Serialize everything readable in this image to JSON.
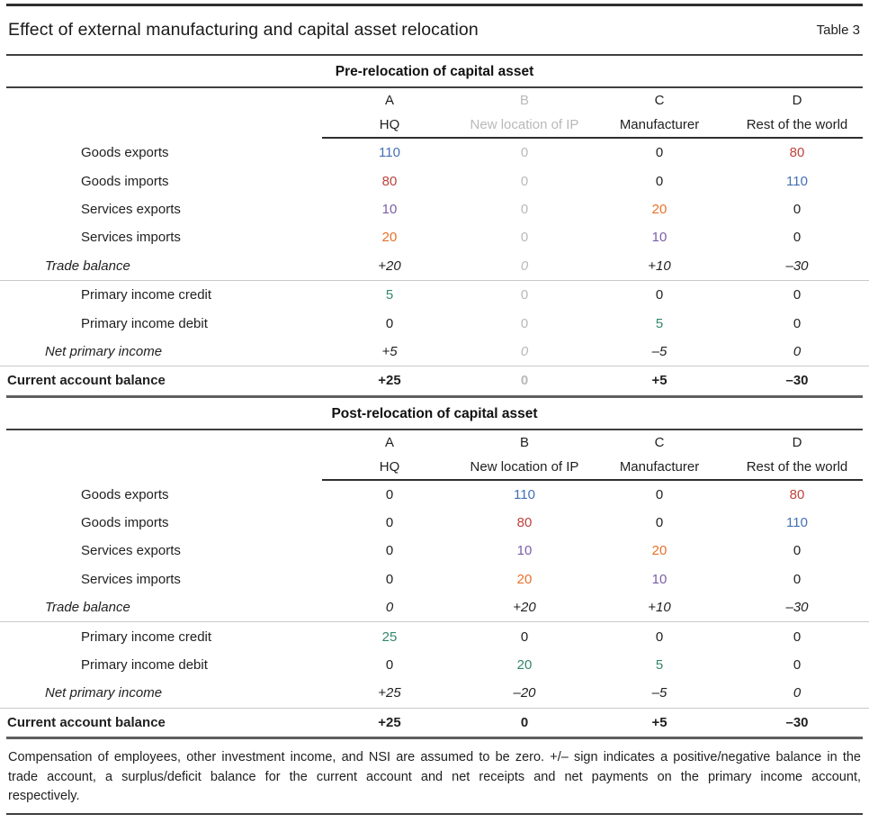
{
  "header": {
    "title": "Effect of external manufacturing and capital asset relocation",
    "table_label": "Table 3"
  },
  "palette": {
    "black": "#1f1f1f",
    "gray": "#b9b9b9",
    "blue": "#4470b4",
    "red": "#be423c",
    "purple": "#7b5ea7",
    "orange": "#e8712a",
    "green": "#348769"
  },
  "columns": {
    "letters": [
      "A",
      "B",
      "C",
      "D"
    ],
    "names": [
      "HQ",
      "New location of IP",
      "Manufacturer",
      "Rest of the world"
    ]
  },
  "tables": [
    {
      "title": "Pre-relocation of capital asset",
      "grayed_column": 1,
      "rows": [
        {
          "label": "Goods exports",
          "indent": "item",
          "style": "normal",
          "values": [
            "110",
            "0",
            "0",
            "80"
          ],
          "colors": [
            "blue",
            "gray",
            "black",
            "red"
          ],
          "divider_after": false
        },
        {
          "label": "Goods imports",
          "indent": "item",
          "style": "normal",
          "values": [
            "80",
            "0",
            "0",
            "110"
          ],
          "colors": [
            "red",
            "gray",
            "black",
            "blue"
          ],
          "divider_after": false
        },
        {
          "label": "Services exports",
          "indent": "item",
          "style": "normal",
          "values": [
            "10",
            "0",
            "20",
            "0"
          ],
          "colors": [
            "purple",
            "gray",
            "orange",
            "black"
          ],
          "divider_after": false
        },
        {
          "label": "Services imports",
          "indent": "item",
          "style": "normal",
          "values": [
            "20",
            "0",
            "10",
            "0"
          ],
          "colors": [
            "orange",
            "gray",
            "purple",
            "black"
          ],
          "divider_after": false
        },
        {
          "label": "Trade balance",
          "indent": "subtotal",
          "style": "italic",
          "values": [
            "+20",
            "0",
            "+10",
            "–30"
          ],
          "colors": [
            "black",
            "gray",
            "black",
            "black"
          ],
          "divider_after": true
        },
        {
          "label": "Primary income credit",
          "indent": "item",
          "style": "normal",
          "values": [
            "5",
            "0",
            "0",
            "0"
          ],
          "colors": [
            "green",
            "gray",
            "black",
            "black"
          ],
          "divider_after": false
        },
        {
          "label": "Primary income debit",
          "indent": "item",
          "style": "normal",
          "values": [
            "0",
            "0",
            "5",
            "0"
          ],
          "colors": [
            "black",
            "gray",
            "green",
            "black"
          ],
          "divider_after": false
        },
        {
          "label": "Net primary income",
          "indent": "subtotal",
          "style": "italic",
          "values": [
            "+5",
            "0",
            "–5",
            "0"
          ],
          "colors": [
            "black",
            "gray",
            "black",
            "black"
          ],
          "divider_after": true
        },
        {
          "label": "Current account balance",
          "indent": "total",
          "style": "bold",
          "values": [
            "+25",
            "0",
            "+5",
            "–30"
          ],
          "colors": [
            "black",
            "gray",
            "black",
            "black"
          ],
          "divider_after": false
        }
      ]
    },
    {
      "title": "Post-relocation of capital asset",
      "grayed_column": null,
      "rows": [
        {
          "label": "Goods exports",
          "indent": "item",
          "style": "normal",
          "values": [
            "0",
            "110",
            "0",
            "80"
          ],
          "colors": [
            "black",
            "blue",
            "black",
            "red"
          ],
          "divider_after": false
        },
        {
          "label": "Goods imports",
          "indent": "item",
          "style": "normal",
          "values": [
            "0",
            "80",
            "0",
            "110"
          ],
          "colors": [
            "black",
            "red",
            "black",
            "blue"
          ],
          "divider_after": false
        },
        {
          "label": "Services exports",
          "indent": "item",
          "style": "normal",
          "values": [
            "0",
            "10",
            "20",
            "0"
          ],
          "colors": [
            "black",
            "purple",
            "orange",
            "black"
          ],
          "divider_after": false
        },
        {
          "label": "Services imports",
          "indent": "item",
          "style": "normal",
          "values": [
            "0",
            "20",
            "10",
            "0"
          ],
          "colors": [
            "black",
            "orange",
            "purple",
            "black"
          ],
          "divider_after": false
        },
        {
          "label": "Trade balance",
          "indent": "subtotal",
          "style": "italic",
          "values": [
            "0",
            "+20",
            "+10",
            "–30"
          ],
          "colors": [
            "black",
            "black",
            "black",
            "black"
          ],
          "divider_after": true
        },
        {
          "label": "Primary income credit",
          "indent": "item",
          "style": "normal",
          "values": [
            "25",
            "0",
            "0",
            "0"
          ],
          "colors": [
            "green",
            "black",
            "black",
            "black"
          ],
          "divider_after": false
        },
        {
          "label": "Primary income debit",
          "indent": "item",
          "style": "normal",
          "values": [
            "0",
            "20",
            "5",
            "0"
          ],
          "colors": [
            "black",
            "green",
            "green",
            "black"
          ],
          "divider_after": false
        },
        {
          "label": "Net primary income",
          "indent": "subtotal",
          "style": "italic",
          "values": [
            "+25",
            "–20",
            "–5",
            "0"
          ],
          "colors": [
            "black",
            "black",
            "black",
            "black"
          ],
          "divider_after": true
        },
        {
          "label": "Current account balance",
          "indent": "total",
          "style": "bold",
          "values": [
            "+25",
            "0",
            "+5",
            "–30"
          ],
          "colors": [
            "black",
            "black",
            "black",
            "black"
          ],
          "divider_after": false
        }
      ]
    }
  ],
  "footnote": {
    "lines": [
      "Compensation of employees, other investment income, and NSI are assumed to be zero. +/– sign indicates a positive/negative balance in the",
      "trade account, a surplus/deficit balance for the current account and net receipts and net payments on the primary income account,",
      "respectively."
    ]
  }
}
